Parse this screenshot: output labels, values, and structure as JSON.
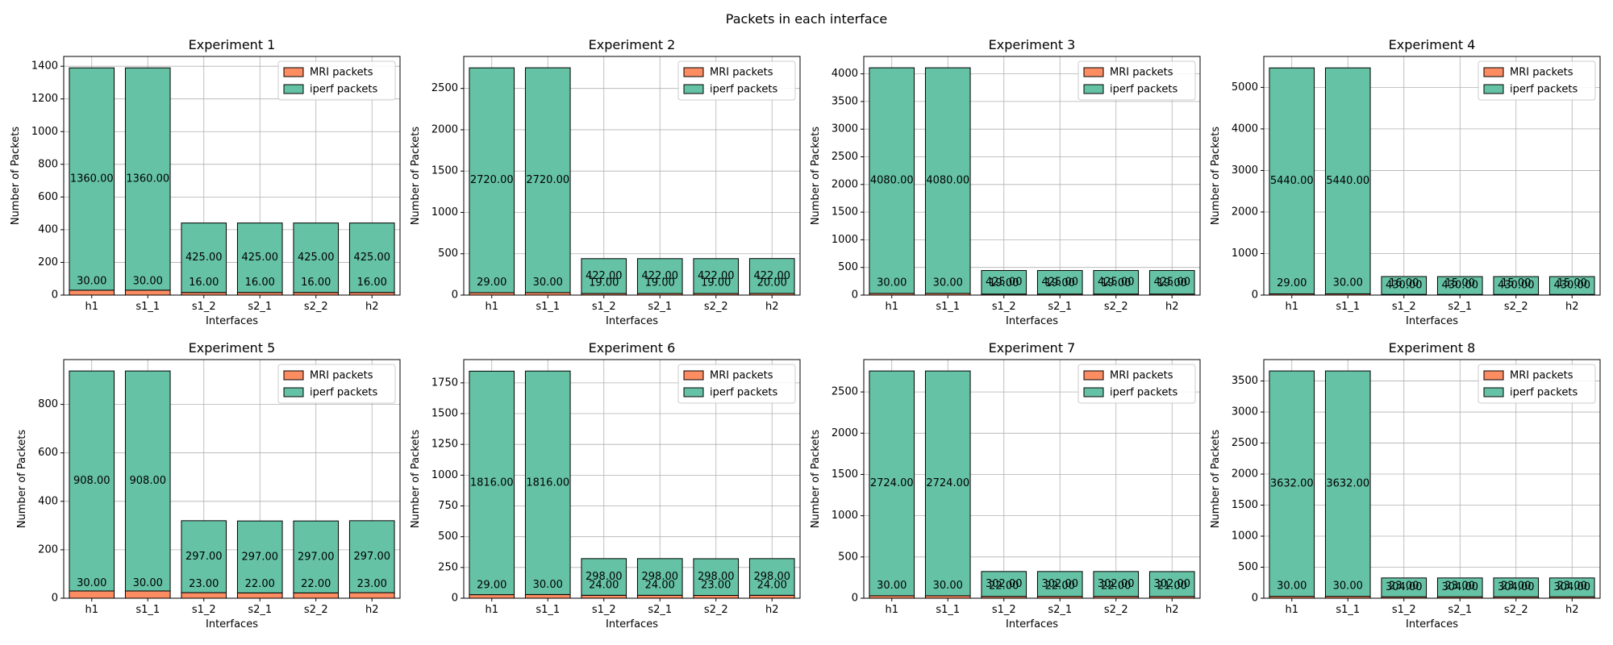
{
  "figure": {
    "title": "Packets in each interface",
    "colors": {
      "mri": "#fc8d62",
      "iperf": "#66c2a5",
      "grid": "#b0b0b0",
      "edge": "#000000"
    },
    "legend": {
      "mri_label": "MRI packets",
      "iperf_label": "iperf packets",
      "placement": "top-right"
    }
  },
  "chart_data": [
    {
      "type": "bar",
      "stacked": true,
      "title": "Experiment 1",
      "xlabel": "Interfaces",
      "ylabel": "Number of Packets",
      "categories": [
        "h1",
        "s1_1",
        "s1_2",
        "s2_1",
        "s2_2",
        "h2"
      ],
      "ylim": [
        0,
        1460
      ],
      "yticks": [
        0,
        200,
        400,
        600,
        800,
        1000,
        1200,
        1400
      ],
      "grid": true,
      "series": [
        {
          "name": "MRI packets",
          "values": [
            30,
            30,
            16,
            16,
            16,
            16
          ]
        },
        {
          "name": "iperf packets",
          "values": [
            1360,
            1360,
            425,
            425,
            425,
            425
          ]
        }
      ]
    },
    {
      "type": "bar",
      "stacked": true,
      "title": "Experiment 2",
      "xlabel": "Interfaces",
      "ylabel": "Number of Packets",
      "categories": [
        "h1",
        "s1_1",
        "s1_2",
        "s2_1",
        "s2_2",
        "h2"
      ],
      "ylim": [
        0,
        2887
      ],
      "yticks": [
        0,
        500,
        1000,
        1500,
        2000,
        2500
      ],
      "grid": true,
      "series": [
        {
          "name": "MRI packets",
          "values": [
            29,
            30,
            19,
            19,
            19,
            20
          ]
        },
        {
          "name": "iperf packets",
          "values": [
            2720,
            2720,
            422,
            422,
            422,
            422
          ]
        }
      ]
    },
    {
      "type": "bar",
      "stacked": true,
      "title": "Experiment 3",
      "xlabel": "Interfaces",
      "ylabel": "Number of Packets",
      "categories": [
        "h1",
        "s1_1",
        "s1_2",
        "s2_1",
        "s2_2",
        "h2"
      ],
      "ylim": [
        0,
        4315
      ],
      "yticks": [
        0,
        500,
        1000,
        1500,
        2000,
        2500,
        3000,
        3500,
        4000
      ],
      "grid": true,
      "series": [
        {
          "name": "MRI packets",
          "values": [
            30,
            30,
            19,
            19,
            19,
            19
          ]
        },
        {
          "name": "iperf packets",
          "values": [
            4080,
            4080,
            425,
            425,
            425,
            425
          ]
        }
      ]
    },
    {
      "type": "bar",
      "stacked": true,
      "title": "Experiment 4",
      "xlabel": "Interfaces",
      "ylabel": "Number of Packets",
      "categories": [
        "h1",
        "s1_1",
        "s1_2",
        "s2_1",
        "s2_2",
        "h2"
      ],
      "ylim": [
        0,
        5745
      ],
      "yticks": [
        0,
        1000,
        2000,
        3000,
        4000,
        5000
      ],
      "grid": true,
      "series": [
        {
          "name": "MRI packets",
          "values": [
            29,
            30,
            16,
            15,
            15,
            15
          ]
        },
        {
          "name": "iperf packets",
          "values": [
            5440,
            5440,
            430,
            430,
            430,
            430
          ]
        }
      ]
    },
    {
      "type": "bar",
      "stacked": true,
      "title": "Experiment 5",
      "xlabel": "Interfaces",
      "ylabel": "Number of Packets",
      "categories": [
        "h1",
        "s1_1",
        "s1_2",
        "s2_1",
        "s2_2",
        "h2"
      ],
      "ylim": [
        0,
        985
      ],
      "yticks": [
        0,
        200,
        400,
        600,
        800
      ],
      "grid": true,
      "series": [
        {
          "name": "MRI packets",
          "values": [
            30,
            30,
            23,
            22,
            22,
            23
          ]
        },
        {
          "name": "iperf packets",
          "values": [
            908,
            908,
            297,
            297,
            297,
            297
          ]
        }
      ]
    },
    {
      "type": "bar",
      "stacked": true,
      "title": "Experiment 6",
      "xlabel": "Interfaces",
      "ylabel": "Number of Packets",
      "categories": [
        "h1",
        "s1_1",
        "s1_2",
        "s2_1",
        "s2_2",
        "h2"
      ],
      "ylim": [
        0,
        1939
      ],
      "yticks": [
        0,
        250,
        500,
        750,
        1000,
        1250,
        1500,
        1750
      ],
      "grid": true,
      "series": [
        {
          "name": "MRI packets",
          "values": [
            29,
            30,
            24,
            24,
            23,
            24
          ]
        },
        {
          "name": "iperf packets",
          "values": [
            1816,
            1816,
            298,
            298,
            298,
            298
          ]
        }
      ]
    },
    {
      "type": "bar",
      "stacked": true,
      "title": "Experiment 7",
      "xlabel": "Interfaces",
      "ylabel": "Number of Packets",
      "categories": [
        "h1",
        "s1_1",
        "s1_2",
        "s2_1",
        "s2_2",
        "h2"
      ],
      "ylim": [
        0,
        2892
      ],
      "yticks": [
        0,
        500,
        1000,
        1500,
        2000,
        2500
      ],
      "grid": true,
      "series": [
        {
          "name": "MRI packets",
          "values": [
            30,
            30,
            22,
            22,
            22,
            21
          ]
        },
        {
          "name": "iperf packets",
          "values": [
            2724,
            2724,
            302,
            302,
            302,
            302
          ]
        }
      ]
    },
    {
      "type": "bar",
      "stacked": true,
      "title": "Experiment 8",
      "xlabel": "Interfaces",
      "ylabel": "Number of Packets",
      "categories": [
        "h1",
        "s1_1",
        "s1_2",
        "s2_1",
        "s2_2",
        "h2"
      ],
      "ylim": [
        0,
        3845
      ],
      "yticks": [
        0,
        500,
        1000,
        1500,
        2000,
        2500,
        3000,
        3500
      ],
      "grid": true,
      "series": [
        {
          "name": "MRI packets",
          "values": [
            30,
            30,
            23,
            23,
            23,
            23
          ]
        },
        {
          "name": "iperf packets",
          "values": [
            3632,
            3632,
            304,
            304,
            304,
            304
          ]
        }
      ]
    }
  ]
}
